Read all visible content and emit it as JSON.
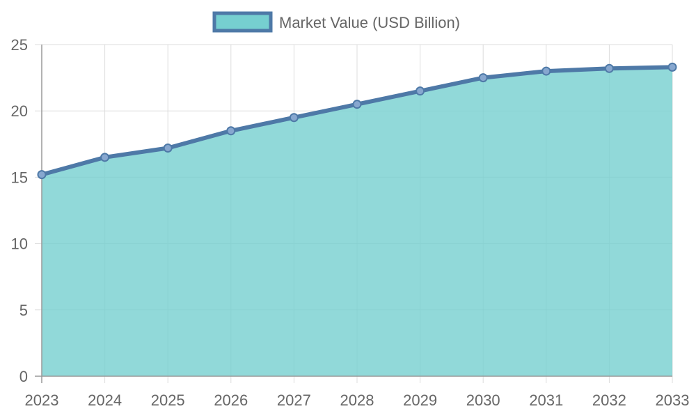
{
  "chart_data": {
    "type": "area",
    "legend": {
      "position": "top-center"
    },
    "x": [
      "2023",
      "2024",
      "2025",
      "2026",
      "2027",
      "2028",
      "2029",
      "2030",
      "2031",
      "2032",
      "2033"
    ],
    "series": [
      {
        "name": "Market Value (USD Billion)",
        "values": [
          15.2,
          16.5,
          17.2,
          18.5,
          19.5,
          20.5,
          21.5,
          22.5,
          23.0,
          23.2,
          23.3
        ],
        "line_color": "#4e79a7",
        "fill_color": "#76cfd0"
      }
    ],
    "ylim": [
      0,
      25
    ],
    "yticks": [
      0,
      5,
      10,
      15,
      20,
      25
    ],
    "grid": true
  }
}
